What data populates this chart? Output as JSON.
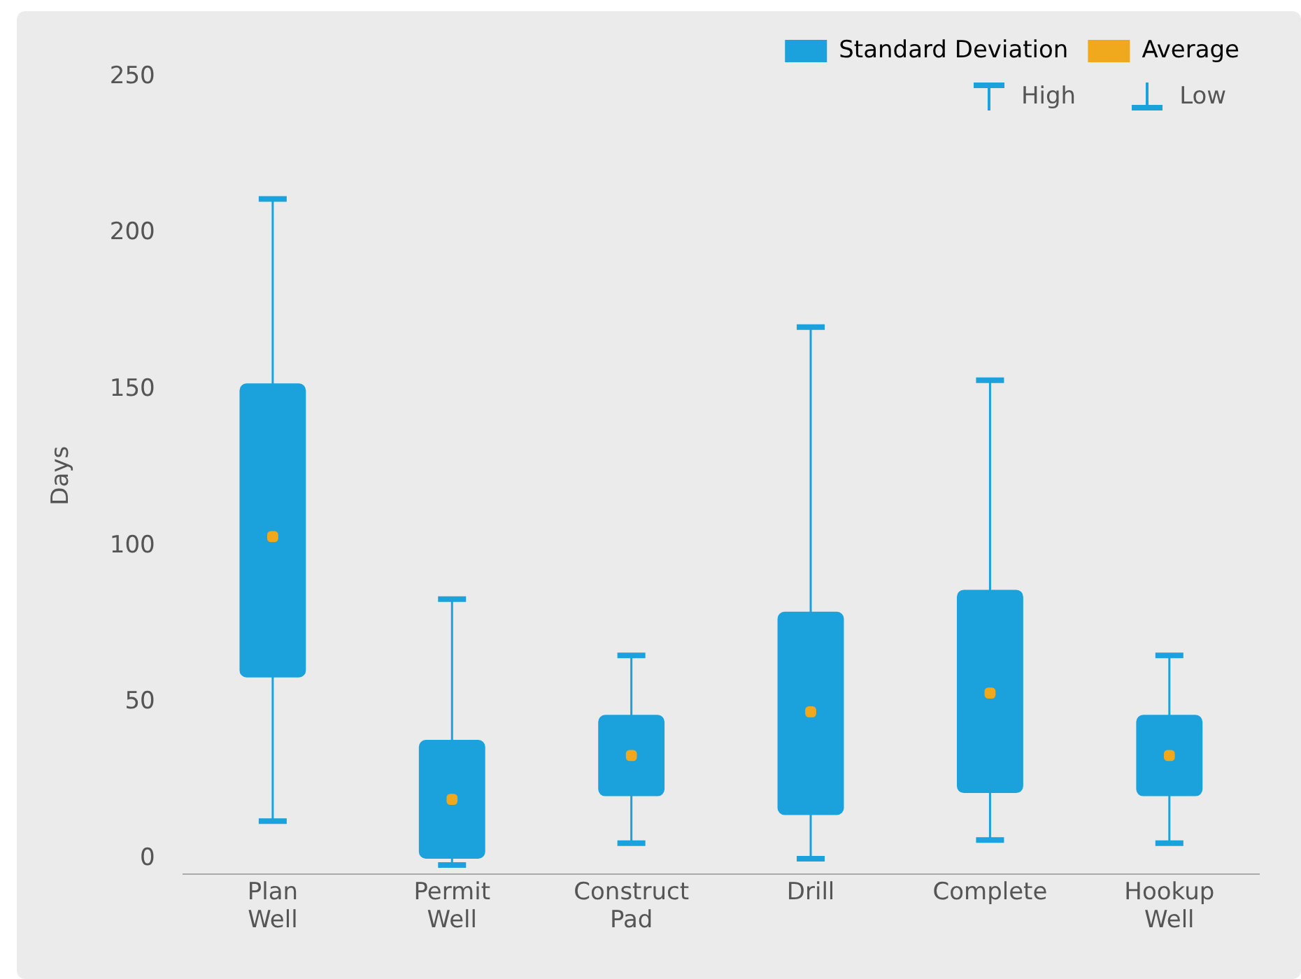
{
  "chart_data": {
    "type": "box",
    "ylabel": "Days",
    "categories": [
      "Plan Well",
      "Permit Well",
      "Construct Pad",
      "Drill",
      "Complete",
      "Hookup Well"
    ],
    "series": [
      {
        "name": "Standard Deviation",
        "type": "box",
        "color": "#1ba1dc",
        "boxes": [
          {
            "low": 12,
            "q1": 58,
            "q3": 152,
            "high": 211
          },
          {
            "low": -2,
            "q1": 0,
            "q3": 38,
            "high": 83
          },
          {
            "low": 5,
            "q1": 20,
            "q3": 46,
            "high": 65
          },
          {
            "low": 0,
            "q1": 14,
            "q3": 79,
            "high": 170
          },
          {
            "low": 6,
            "q1": 21,
            "q3": 86,
            "high": 153
          },
          {
            "low": 5,
            "q1": 20,
            "q3": 46,
            "high": 65
          }
        ]
      },
      {
        "name": "Average",
        "type": "scatter",
        "color": "#f0a81c",
        "x": [
          "Plan Well",
          "Permit Well",
          "Construct Pad",
          "Drill",
          "Complete",
          "Hookup Well"
        ],
        "values": [
          103,
          19,
          33,
          47,
          53,
          33
        ]
      }
    ],
    "ylim": [
      -5,
      250
    ],
    "yticks": [
      0,
      50,
      100,
      150,
      200,
      250
    ],
    "grid": false,
    "legend": "top right",
    "annotations": [
      "High",
      "Low"
    ]
  }
}
